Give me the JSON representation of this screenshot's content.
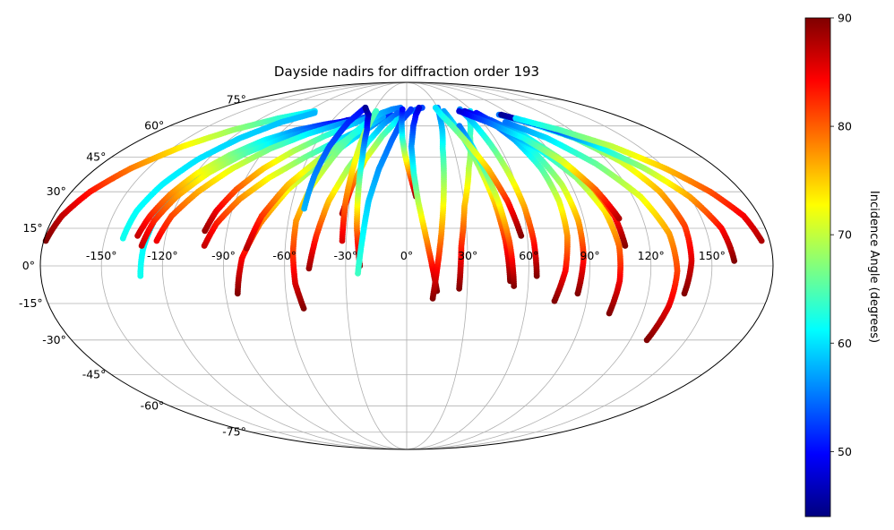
{
  "chart_data": {
    "type": "scatter",
    "projection": "mollweide",
    "title": "Dayside nadirs for diffraction order 193",
    "x_ticks": [
      "-150°",
      "-120°",
      "-90°",
      "-60°",
      "-30°",
      "0°",
      "30°",
      "60°",
      "90°",
      "120°",
      "150°"
    ],
    "x_tick_values": [
      -150,
      -120,
      -90,
      -60,
      -30,
      0,
      30,
      60,
      90,
      120,
      150
    ],
    "y_ticks": [
      "75°",
      "60°",
      "45°",
      "30°",
      "15°",
      "0°",
      "-15°",
      "-30°",
      "-45°",
      "-60°",
      "-75°"
    ],
    "y_tick_values": [
      75,
      60,
      45,
      30,
      15,
      0,
      -15,
      -30,
      -45,
      -60,
      -75
    ],
    "grid": true,
    "colorbar": {
      "label": "Incidence Angle (degrees)",
      "range": [
        44,
        90
      ],
      "ticks": [
        "50",
        "60",
        "70",
        "80",
        "90"
      ],
      "tick_values": [
        50,
        60,
        70,
        80,
        90
      ],
      "colormap": "jet",
      "position": "right"
    },
    "tracks": [
      {
        "lon": [
          -131,
          -130,
          -128,
          -124,
          -118,
          -109,
          -97,
          -82,
          -64
        ],
        "lat": [
          -4,
          7,
          18,
          28,
          37,
          45,
          51,
          56,
          59
        ],
        "inc_start": 62,
        "inc_end": 55
      },
      {
        "lon": [
          -134,
          -131,
          -126,
          -119,
          -109,
          -96,
          -80,
          -62,
          -44
        ],
        "lat": [
          12,
          20,
          29,
          38,
          46,
          53,
          58,
          61,
          63
        ],
        "inc_start": 87,
        "inc_end": 47
      },
      {
        "lon": [
          -131,
          -128,
          -122,
          -113,
          -100,
          -84,
          -66,
          -48,
          -30
        ],
        "lat": [
          8,
          18,
          28,
          38,
          47,
          54,
          59,
          63,
          65
        ],
        "inc_start": 87,
        "inc_end": 45
      },
      {
        "lon": [
          -124,
          -120,
          -112,
          -101,
          -87,
          -70,
          -52,
          -33,
          -15
        ],
        "lat": [
          10,
          20,
          30,
          40,
          49,
          56,
          61,
          65,
          67
        ],
        "inc_start": 85,
        "inc_end": 50
      },
      {
        "lon": [
          -101,
          -98,
          -92,
          -83,
          -71,
          -57,
          -42,
          -27
        ],
        "lat": [
          14,
          22,
          31,
          40,
          48,
          55,
          61,
          66
        ],
        "inc_start": 89,
        "inc_end": 55
      },
      {
        "lon": [
          -100,
          -96,
          -88,
          -77,
          -62,
          -46,
          -30,
          -14
        ],
        "lat": [
          8,
          17,
          27,
          36,
          45,
          53,
          60,
          66
        ],
        "inc_start": 87,
        "inc_end": 52
      },
      {
        "lon": [
          -84,
          -81,
          -74,
          -64,
          -51,
          -36,
          -20
        ],
        "lat": [
          -11,
          3,
          17,
          31,
          43,
          54,
          64
        ],
        "inc_start": 90,
        "inc_end": 55
      },
      {
        "lon": [
          -79,
          -74,
          -65,
          -52,
          -37,
          -20
        ],
        "lat": [
          7,
          20,
          33,
          45,
          56,
          65
        ],
        "inc_start": 88,
        "inc_end": 57
      },
      {
        "lon": [
          -52,
          -55,
          -56,
          -56,
          -52,
          -45,
          -38,
          -30,
          -22,
          -14,
          -6
        ],
        "lat": [
          -17,
          -7,
          5,
          18,
          32,
          45,
          56,
          63,
          67,
          69,
          70
        ],
        "inc_start": 90,
        "inc_end": 55
      },
      {
        "lon": [
          -48,
          -45,
          -41,
          -34,
          -26,
          -18,
          -8
        ],
        "lat": [
          -1,
          12,
          26,
          40,
          52,
          61,
          67
        ],
        "inc_start": 89,
        "inc_end": 54
      },
      {
        "lon": [
          -53,
          -52,
          -50,
          -46,
          -40
        ],
        "lat": [
          23,
          37,
          50,
          62,
          70
        ],
        "inc_start": 58,
        "inc_end": 50
      },
      {
        "lon": [
          -33,
          -30,
          -25,
          -17,
          -8,
          4,
          15
        ],
        "lat": [
          21,
          32,
          44,
          55,
          63,
          68,
          70
        ],
        "inc_start": 88,
        "inc_end": 53
      },
      {
        "lon": [
          -32,
          -32,
          -31,
          -30,
          -28
        ],
        "lat": [
          10,
          26,
          42,
          56,
          68
        ],
        "inc_start": 86,
        "inc_end": 64
      },
      {
        "lon": [
          -23,
          -25,
          -26,
          -27,
          -29,
          -33,
          -40
        ],
        "lat": [
          0,
          15,
          30,
          45,
          58,
          66,
          70
        ],
        "inc_start": 90,
        "inc_end": 45
      },
      {
        "lon": [
          -24,
          -22,
          -20,
          -16,
          -10,
          -4,
          4
        ],
        "lat": [
          -3,
          11,
          26,
          40,
          53,
          63,
          69
        ],
        "inc_start": 64,
        "inc_end": 52
      },
      {
        "lon": [
          5,
          2,
          -1,
          -3,
          -4,
          -4
        ],
        "lat": [
          28,
          37,
          46,
          54,
          62,
          69
        ],
        "inc_start": 90,
        "inc_end": 50
      },
      {
        "lon": [
          15,
          12,
          9,
          6,
          4,
          3,
          5,
          8,
          12
        ],
        "lat": [
          -10,
          2,
          14,
          26,
          38,
          50,
          60,
          66,
          70
        ],
        "inc_start": 90,
        "inc_end": 48
      },
      {
        "lon": [
          13,
          15,
          17,
          19,
          21,
          23,
          26,
          28,
          30
        ],
        "lat": [
          -13,
          -1,
          11,
          24,
          37,
          49,
          58,
          65,
          70
        ],
        "inc_start": 90,
        "inc_end": 55
      },
      {
        "lon": [
          26,
          27,
          30,
          36,
          44,
          52,
          58
        ],
        "lat": [
          -9,
          8,
          24,
          40,
          55,
          64,
          68
        ],
        "inc_start": 90,
        "inc_end": 60
      },
      {
        "lon": [
          51,
          49,
          46,
          42,
          38,
          34
        ],
        "lat": [
          -6,
          10,
          26,
          42,
          57,
          68
        ],
        "inc_start": 90,
        "inc_end": 57
      },
      {
        "lon": [
          53,
          51,
          48,
          44,
          40
        ],
        "lat": [
          -8,
          9,
          26,
          43,
          60
        ],
        "inc_start": 90,
        "inc_end": 55
      },
      {
        "lon": [
          57,
          53,
          47,
          40,
          34,
          30,
          28
        ],
        "lat": [
          12,
          26,
          40,
          52,
          61,
          66,
          70
        ],
        "inc_start": 90,
        "inc_end": 60
      },
      {
        "lon": [
          64,
          63,
          61,
          58,
          55,
          52,
          50
        ],
        "lat": [
          -4,
          10,
          24,
          38,
          51,
          62,
          69
        ],
        "inc_start": 90,
        "inc_end": 56
      },
      {
        "lon": [
          74,
          78,
          80,
          80,
          78,
          73,
          66
        ],
        "lat": [
          -14,
          -2,
          12,
          26,
          40,
          53,
          63
        ],
        "inc_start": 90,
        "inc_end": 52
      },
      {
        "lon": [
          85,
          87,
          87,
          85,
          80,
          72,
          62
        ],
        "lat": [
          -11,
          3,
          18,
          33,
          47,
          59,
          67
        ],
        "inc_start": 90,
        "inc_end": 50
      },
      {
        "lon": [
          103,
          105,
          105,
          102,
          95,
          84,
          70,
          56
        ],
        "lat": [
          -19,
          -6,
          8,
          22,
          36,
          49,
          59,
          66
        ],
        "inc_start": 90,
        "inc_end": 50
      },
      {
        "lon": [
          108,
          106,
          101,
          93,
          82,
          68,
          53
        ],
        "lat": [
          8,
          20,
          32,
          44,
          55,
          63,
          68
        ],
        "inc_start": 90,
        "inc_end": 48
      },
      {
        "lon": [
          108,
          102,
          93,
          80,
          64,
          48
        ],
        "lat": [
          19,
          31,
          43,
          54,
          62,
          68
        ],
        "inc_start": 88,
        "inc_end": 48
      },
      {
        "lon": [
          138,
          140,
          140,
          136,
          128,
          115,
          98,
          80
        ],
        "lat": [
          -11,
          2,
          16,
          30,
          43,
          54,
          61,
          66
        ],
        "inc_start": 90,
        "inc_end": 55
      },
      {
        "lon": [
          129,
          132,
          133,
          131,
          124,
          112,
          96,
          78
        ],
        "lat": [
          -30,
          -16,
          -2,
          13,
          28,
          42,
          54,
          62
        ],
        "inc_start": 90,
        "inc_end": 55
      },
      {
        "lon": [
          161,
          158,
          150,
          138,
          122,
          103,
          82
        ],
        "lat": [
          2,
          15,
          28,
          40,
          51,
          60,
          66
        ],
        "inc_start": 90,
        "inc_end": 45
      },
      {
        "lon": [
          176,
          172,
          163,
          150,
          133,
          112,
          90
        ],
        "lat": [
          10,
          20,
          30,
          40,
          50,
          58,
          64
        ],
        "inc_start": 88,
        "inc_end": 60
      },
      {
        "lon": [
          -179,
          -176,
          -170,
          -160,
          -145,
          -127,
          -106,
          -84
        ],
        "lat": [
          10,
          20,
          30,
          40,
          50,
          58,
          64,
          68
        ],
        "inc_start": 90,
        "inc_end": 60
      },
      {
        "lon": [
          -141,
          -139,
          -134,
          -126,
          -114,
          -99,
          -82
        ],
        "lat": [
          11,
          22,
          33,
          44,
          54,
          62,
          67
        ],
        "inc_start": 62,
        "inc_end": 58
      }
    ]
  }
}
